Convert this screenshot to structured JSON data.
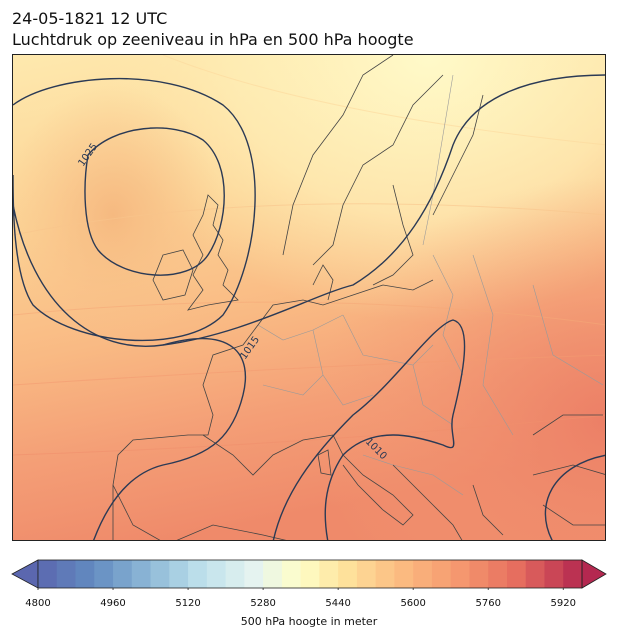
{
  "title_line1": "24-05-1821 12 UTC",
  "title_line2": "Luchtdruk op zeeniveau in hPa en 500 hPa hoogte",
  "map": {
    "isobar_labels": [
      "1025",
      "1015",
      "1010"
    ]
  },
  "colorbar": {
    "tick_labels": [
      "4800",
      "4960",
      "5120",
      "5280",
      "5440",
      "5600",
      "5760",
      "5920"
    ],
    "tick_values": [
      4800,
      4960,
      5120,
      5280,
      5440,
      5600,
      5760,
      5920
    ],
    "min": 4800,
    "max": 5960,
    "step": 40,
    "caption": "500 hPa hoogte in meter",
    "colormap": "RdYlBu_r"
  },
  "colors": {
    "isobar": "#2b3a55",
    "coastline": "#444444",
    "border": "#9a9a9a"
  }
}
